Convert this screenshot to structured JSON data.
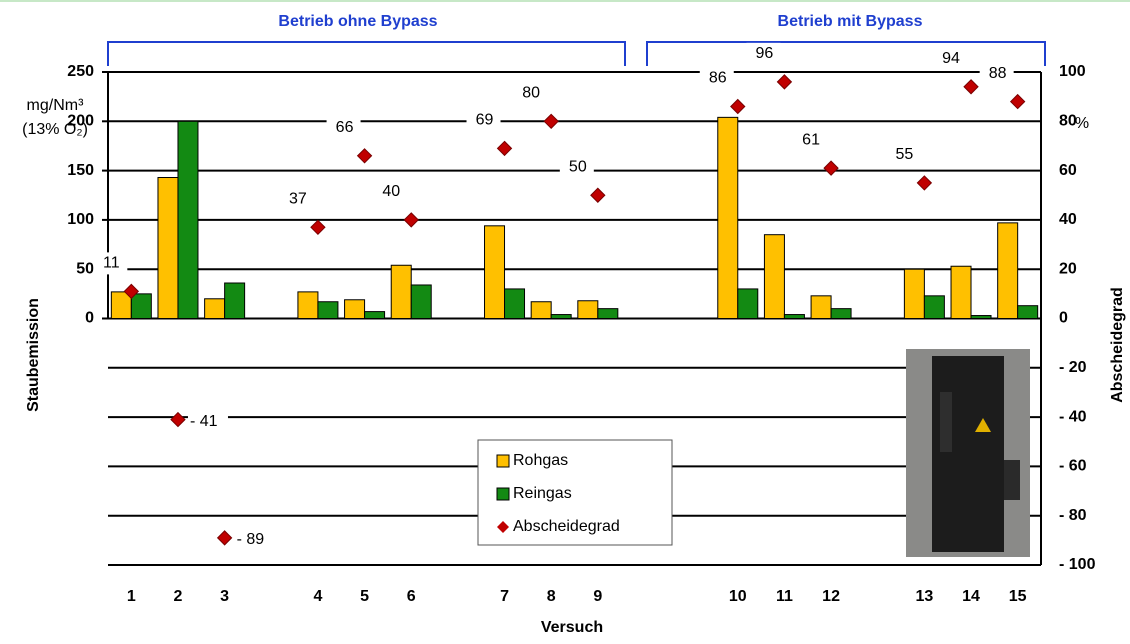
{
  "chart_data": {
    "type": "bar",
    "group_labels": [
      "Betrieb ohne Bypass",
      "Betrieb mit Bypass"
    ],
    "x_label": "Versuch",
    "y_label": "Staubemission",
    "y_unit": "mg/Nm³",
    "y_unit_note": "(13% O₂)",
    "y2_label": "Abscheidegrad",
    "y2_unit": "%",
    "categories": [
      "1",
      "2",
      "3",
      null,
      "4",
      "5",
      "6",
      null,
      "7",
      "8",
      "9",
      null,
      null,
      "10",
      "11",
      "12",
      null,
      "13",
      "14",
      "15"
    ],
    "ylim": [
      -250,
      250
    ],
    "yticks": [
      0,
      50,
      100,
      150,
      200,
      250
    ],
    "y2lim": [
      -100,
      100
    ],
    "y2ticks": [
      100,
      80,
      60,
      40,
      20,
      0,
      {
        "value": -20,
        "label": "- 20"
      },
      {
        "value": -40,
        "label": "- 40"
      },
      {
        "value": -60,
        "label": "- 60"
      },
      {
        "value": -80,
        "label": "- 80"
      },
      {
        "value": -100,
        "label": "- 100"
      }
    ],
    "grid": true,
    "series": [
      {
        "name": "Rohgas",
        "type": "bar",
        "color": "#ffc000",
        "values": [
          27,
          143,
          20,
          null,
          27,
          19,
          54,
          null,
          94,
          17,
          18,
          null,
          null,
          204,
          85,
          23,
          null,
          50,
          53,
          97
        ]
      },
      {
        "name": "Reingas",
        "type": "bar",
        "color": "#138a13",
        "values": [
          25,
          200,
          36,
          null,
          17,
          7,
          34,
          null,
          30,
          4,
          10,
          null,
          null,
          30,
          4,
          10,
          null,
          23,
          3,
          13
        ]
      },
      {
        "name": "Abscheidegrad",
        "type": "scatter",
        "axis": "y2",
        "color": "#c00000",
        "values": [
          11,
          -41,
          -89,
          null,
          37,
          66,
          40,
          null,
          69,
          80,
          50,
          null,
          null,
          86,
          96,
          61,
          null,
          55,
          94,
          88
        ],
        "value_labels": [
          "11",
          "- 41",
          "- 89",
          null,
          "37",
          "66",
          "40",
          null,
          "69",
          "80",
          "50",
          null,
          null,
          "86",
          "96",
          "61",
          null,
          "55",
          "94",
          "88"
        ]
      }
    ]
  }
}
